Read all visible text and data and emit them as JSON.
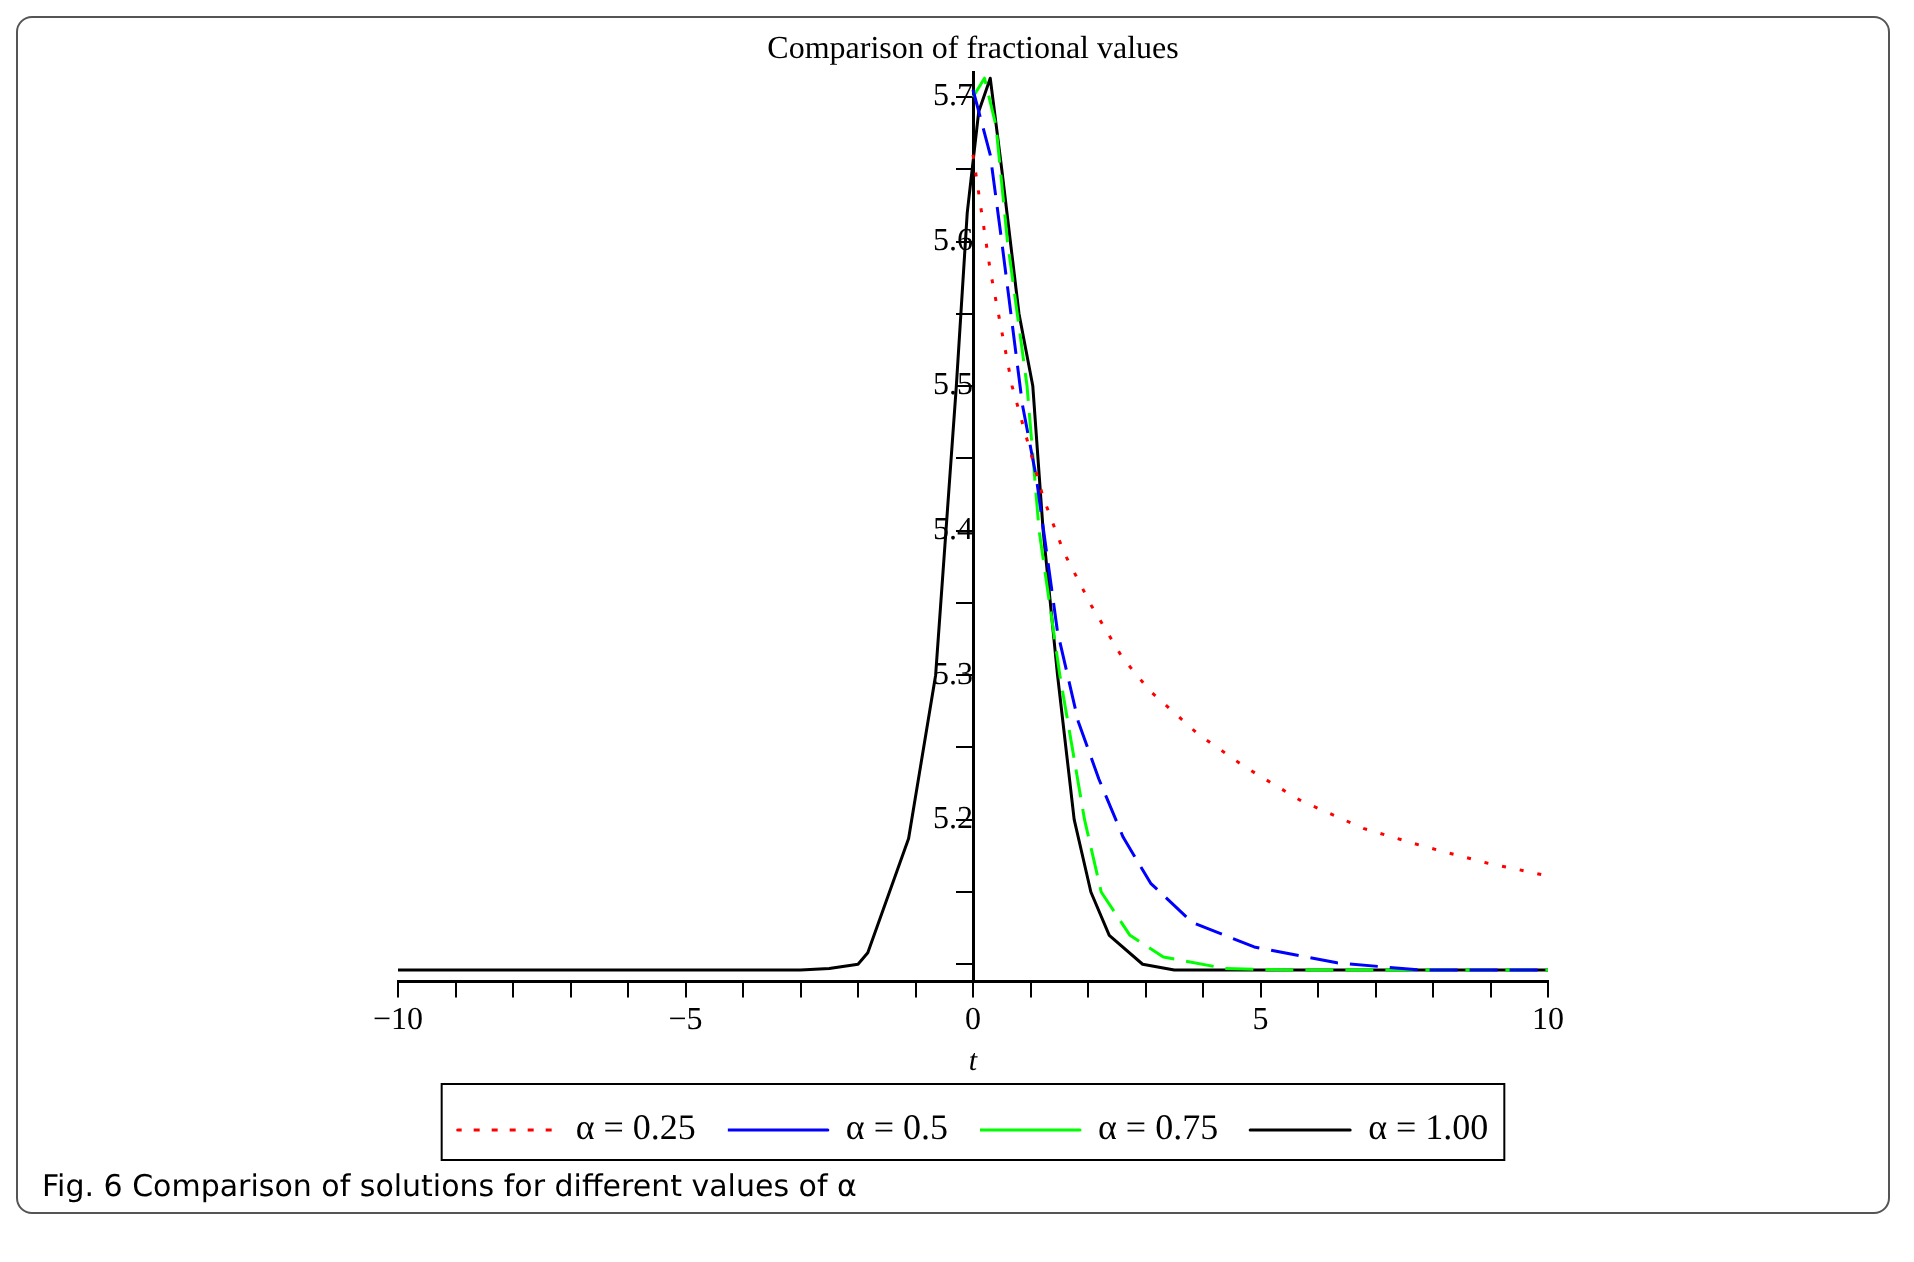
{
  "chart_data": {
    "type": "line",
    "title": "Comparison of fractional values",
    "xlabel": "t",
    "annotations": [
      "Fig. 6  Comparison of solutions for different values of α"
    ],
    "xlim": [
      -10,
      10
    ],
    "xticks": [
      -10,
      {
        "value": -9,
        "label": null
      },
      {
        "value": -8,
        "label": null
      },
      {
        "value": -7,
        "label": null
      },
      {
        "value": -6,
        "label": null
      },
      -5,
      {
        "value": -4,
        "label": null
      },
      {
        "value": -3,
        "label": null
      },
      {
        "value": -2,
        "label": null
      },
      {
        "value": -1,
        "label": null
      },
      0,
      {
        "value": 1,
        "label": null
      },
      {
        "value": 2,
        "label": null
      },
      {
        "value": 3,
        "label": null
      },
      {
        "value": 4,
        "label": null
      },
      5,
      {
        "value": 6,
        "label": null
      },
      {
        "value": 7,
        "label": null
      },
      {
        "value": 8,
        "label": null
      },
      {
        "value": 9,
        "label": null
      },
      10
    ],
    "ylim": [
      5.088,
      5.717
    ],
    "yticks": [
      {
        "value": 5.1,
        "label": null
      },
      {
        "value": 5.15,
        "label": null
      },
      5.2,
      {
        "value": 5.25,
        "label": null
      },
      5.3,
      {
        "value": 5.35,
        "label": null
      },
      5.4,
      {
        "value": 5.45,
        "label": null
      },
      5.5,
      {
        "value": 5.55,
        "label": null
      },
      5.6,
      {
        "value": 5.65,
        "label": null
      },
      5.7
    ],
    "grid": false,
    "legend": "bottom",
    "marker": "none",
    "series": [
      {
        "name": "α = 0.25",
        "color": "#ff0000",
        "line_style": "dotted",
        "x": [
          0,
          0.3,
          0.68,
          1.22,
          1.58,
          2.06,
          2.6,
          3.08,
          3.92,
          4.75,
          5.71,
          6.79,
          7.8,
          8.94,
          9.66,
          10
        ],
        "values": [
          5.66,
          5.58,
          5.5,
          5.423,
          5.385,
          5.348,
          5.312,
          5.289,
          5.259,
          5.236,
          5.213,
          5.194,
          5.182,
          5.17,
          5.164,
          5.161
        ]
      },
      {
        "name": "α = 0.5",
        "color": "#0000ff",
        "line_style": "dashed",
        "x": [
          0,
          0.3,
          0.5,
          0.86,
          1.1,
          1.47,
          1.83,
          2.19,
          2.61,
          3.09,
          3.81,
          4.89,
          6.33,
          7.77,
          10
        ],
        "values": [
          5.705,
          5.66,
          5.6,
          5.487,
          5.437,
          5.33,
          5.268,
          5.228,
          5.188,
          5.156,
          5.129,
          5.112,
          5.101,
          5.096,
          5.096
        ]
      },
      {
        "name": "α = 0.75",
        "color": "#00ff00",
        "line_style": "dashed",
        "x": [
          0,
          0.2,
          0.4,
          0.6,
          0.94,
          1.15,
          1.51,
          1.94,
          2.23,
          2.73,
          3.31,
          4.39,
          5.5,
          10
        ],
        "values": [
          5.7,
          5.713,
          5.68,
          5.6,
          5.5,
          5.4,
          5.3,
          5.2,
          5.15,
          5.12,
          5.105,
          5.097,
          5.096,
          5.096
        ]
      },
      {
        "name": "α = 1.00",
        "color": "#000000",
        "line_style": "solid",
        "x": [
          -10,
          -3,
          -2.5,
          -2,
          -1.83,
          -1.12,
          -0.65,
          -0.29,
          -0.1,
          0.1,
          0.3,
          0.5,
          0.8,
          1.04,
          1.22,
          1.47,
          1.76,
          2.05,
          2.37,
          2.95,
          3.5,
          10
        ],
        "values": [
          5.096,
          5.096,
          5.097,
          5.1,
          5.108,
          5.187,
          5.3,
          5.5,
          5.62,
          5.69,
          5.713,
          5.65,
          5.55,
          5.5,
          5.4,
          5.3,
          5.2,
          5.15,
          5.12,
          5.1,
          5.096,
          5.096
        ]
      }
    ]
  }
}
